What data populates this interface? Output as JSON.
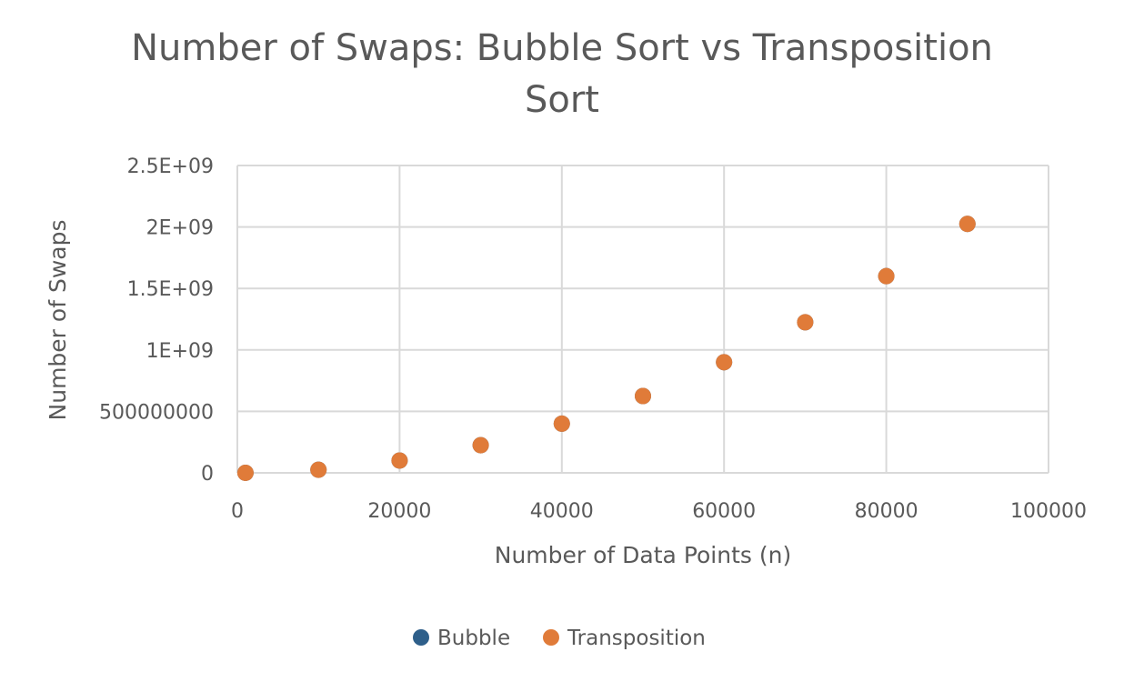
{
  "chart_data": {
    "type": "scatter",
    "title_lines": [
      "Number of Swaps: Bubble Sort vs Transposition",
      "Sort"
    ],
    "xlabel": "Number of Data Points (n)",
    "ylabel": "Number of Swaps",
    "xlim": [
      0,
      100000
    ],
    "ylim": [
      0,
      2500000000
    ],
    "x_ticks": [
      0,
      20000,
      40000,
      60000,
      80000,
      100000
    ],
    "x_tick_labels": [
      "0",
      "20000",
      "40000",
      "60000",
      "80000",
      "100000"
    ],
    "y_ticks": [
      0,
      500000000,
      1000000000,
      1500000000,
      2000000000,
      2500000000
    ],
    "y_tick_labels": [
      "0",
      "500000000",
      "1E+09",
      "1.5E+09",
      "2E+09",
      "2.5E+09"
    ],
    "grid": true,
    "legend_position": "bottom",
    "series": [
      {
        "name": "Bubble",
        "color": "#2e5f8a",
        "x": [
          1000,
          10000,
          20000,
          30000,
          40000,
          50000,
          60000,
          70000,
          80000,
          90000
        ],
        "y": [
          250000,
          25000000,
          100000000,
          225000000,
          400000000,
          625000000,
          900000000,
          1225000000,
          1600000000,
          2025000000
        ]
      },
      {
        "name": "Transposition",
        "color": "#e07b39",
        "x": [
          1000,
          10000,
          20000,
          30000,
          40000,
          50000,
          60000,
          70000,
          80000,
          90000
        ],
        "y": [
          250000,
          25000000,
          100000000,
          225000000,
          400000000,
          625000000,
          900000000,
          1225000000,
          1600000000,
          2025000000
        ]
      }
    ]
  }
}
